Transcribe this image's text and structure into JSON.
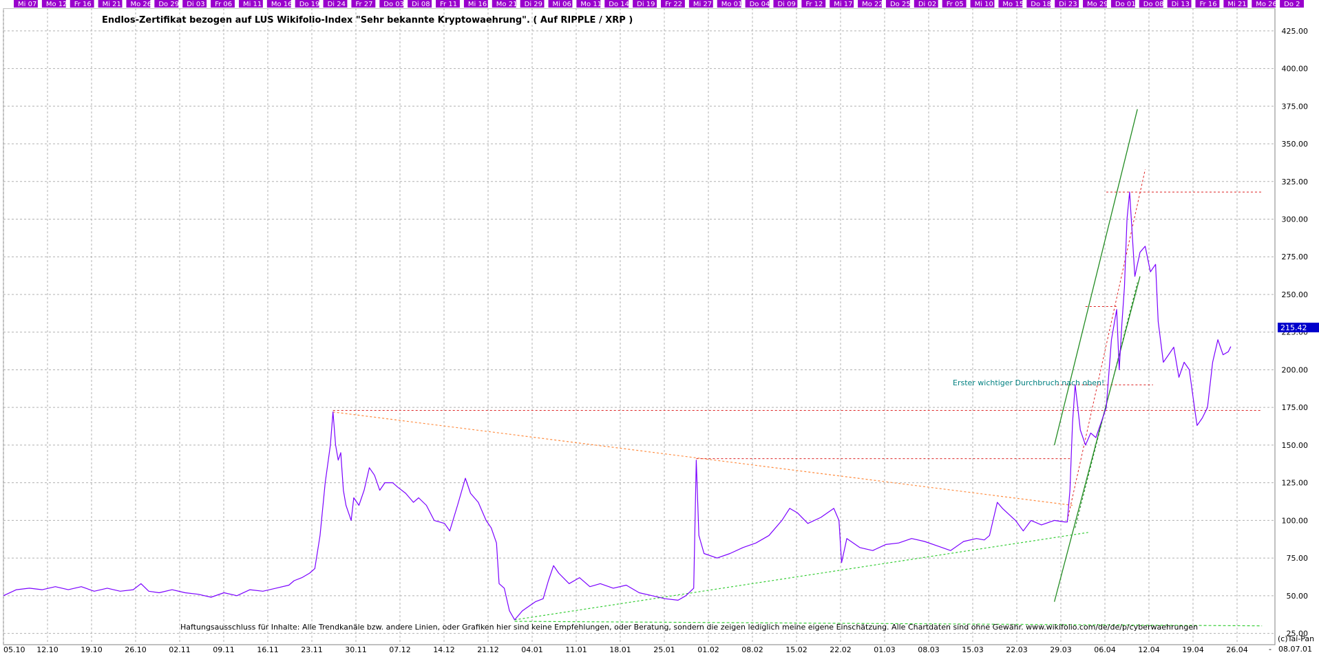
{
  "chart_data": {
    "type": "line",
    "title": "Endlos-Zertifikat bezogen auf LUS Wikifolio-Index \"Sehr bekannte Kryptowaehrung\". ( Auf RIPPLE / XRP )",
    "xlabel": "",
    "ylabel": "",
    "ylim": [
      17.5,
      440
    ],
    "grid": true,
    "y_ticks": [
      "25.00",
      "50.00",
      "75.00",
      "100.00",
      "125.00",
      "150.00",
      "175.00",
      "200.00",
      "225.00",
      "250.00",
      "275.00",
      "300.00",
      "325.00",
      "350.00",
      "375.00",
      "400.00",
      "425.00"
    ],
    "x_ticks": [
      "05.10",
      "12.10",
      "19.10",
      "26.10",
      "02.11",
      "09.11",
      "16.11",
      "23.11",
      "30.11",
      "07.12",
      "14.12",
      "21.12",
      "04.01",
      "11.01",
      "18.01",
      "25.01",
      "01.02",
      "08.02",
      "15.02",
      "22.02",
      "01.03",
      "08.03",
      "15.03",
      "22.03",
      "29.03",
      "06.04",
      "12.04",
      "19.04",
      "26.04"
    ],
    "top_day_labels": [
      "Mi 07",
      "Mo 12",
      "Fr 16",
      "Mi 21",
      "Mo 26",
      "Do 29",
      "Di 03",
      "Fr 06",
      "Mi 11",
      "Mo 16",
      "Do 19",
      "Di 24",
      "Fr 27",
      "Do 03",
      "Di 08",
      "Fr 11",
      "Mi 16",
      "Mo 21",
      "Di 29",
      "Mi 06",
      "Mo 11",
      "Do 14",
      "Di 19",
      "Fr 22",
      "Mi 27",
      "Mo 01",
      "Do 04",
      "Di 09",
      "Fr 12",
      "Mi 17",
      "Mo 22",
      "Do 25",
      "Di 02",
      "Fr 05",
      "Mi 10",
      "Mo 15",
      "Do 18",
      "Di 23",
      "Mo 29",
      "Do 01",
      "Do 08",
      "Di 13",
      "Fr 16",
      "Mi 21",
      "Mo 26",
      "Do 2"
    ],
    "last_value_label": "215.42",
    "annotation": "Erster wichtiger Durchbruch nach oben!",
    "disclaimer": "Haftungsausschluss für Inhalte: Alle Trendkanäle bzw. andere Linien, oder Grafiken hier sind keine Empfehlungen, oder Beratung, sondern die zeigen lediglich meine eigene Einschätzung. Alle Chartdaten sind ohne Gewähr.  www.wikifolio.com/de/de/p/cyberwaehrungen",
    "copyright": "(c)Tai-Pan",
    "date_label": "08.07.01",
    "minus_label": "-",
    "series": [
      {
        "color": "#7a00ff",
        "points": [
          [
            0,
            50
          ],
          [
            5,
            54
          ],
          [
            10,
            55
          ],
          [
            15,
            54
          ],
          [
            20,
            56
          ],
          [
            25,
            54
          ],
          [
            30,
            56
          ],
          [
            35,
            53
          ],
          [
            40,
            55
          ],
          [
            45,
            53
          ],
          [
            50,
            54
          ],
          [
            53,
            58
          ],
          [
            56,
            53
          ],
          [
            60,
            52
          ],
          [
            65,
            54
          ],
          [
            70,
            52
          ],
          [
            75,
            51
          ],
          [
            80,
            49
          ],
          [
            85,
            52
          ],
          [
            90,
            50
          ],
          [
            95,
            54
          ],
          [
            100,
            53
          ],
          [
            105,
            55
          ],
          [
            110,
            57
          ],
          [
            112,
            60
          ],
          [
            115,
            62
          ],
          [
            118,
            65
          ],
          [
            120,
            68
          ],
          [
            122,
            90
          ],
          [
            124,
            125
          ],
          [
            126,
            150
          ],
          [
            127,
            172
          ],
          [
            128,
            150
          ],
          [
            129,
            140
          ],
          [
            130,
            145
          ],
          [
            131,
            120
          ],
          [
            132,
            110
          ],
          [
            134,
            100
          ],
          [
            135,
            115
          ],
          [
            137,
            110
          ],
          [
            139,
            120
          ],
          [
            141,
            135
          ],
          [
            143,
            130
          ],
          [
            145,
            120
          ],
          [
            147,
            125
          ],
          [
            150,
            125
          ],
          [
            152,
            122
          ],
          [
            155,
            118
          ],
          [
            158,
            112
          ],
          [
            160,
            115
          ],
          [
            163,
            110
          ],
          [
            166,
            100
          ],
          [
            170,
            98
          ],
          [
            172,
            93
          ],
          [
            175,
            110
          ],
          [
            178,
            128
          ],
          [
            180,
            118
          ],
          [
            183,
            112
          ],
          [
            186,
            100
          ],
          [
            188,
            95
          ],
          [
            190,
            85
          ],
          [
            191,
            58
          ],
          [
            193,
            55
          ],
          [
            195,
            40
          ],
          [
            197,
            34
          ],
          [
            200,
            40
          ],
          [
            205,
            46
          ],
          [
            208,
            48
          ],
          [
            210,
            60
          ],
          [
            212,
            70
          ],
          [
            214,
            65
          ],
          [
            218,
            58
          ],
          [
            222,
            62
          ],
          [
            226,
            56
          ],
          [
            230,
            58
          ],
          [
            235,
            55
          ],
          [
            240,
            57
          ],
          [
            245,
            52
          ],
          [
            250,
            50
          ],
          [
            255,
            48
          ],
          [
            260,
            47
          ],
          [
            263,
            50
          ],
          [
            266,
            55
          ],
          [
            267,
            140
          ],
          [
            268,
            90
          ],
          [
            270,
            78
          ],
          [
            275,
            75
          ],
          [
            280,
            78
          ],
          [
            285,
            82
          ],
          [
            290,
            85
          ],
          [
            295,
            90
          ],
          [
            300,
            100
          ],
          [
            303,
            108
          ],
          [
            306,
            105
          ],
          [
            310,
            98
          ],
          [
            315,
            102
          ],
          [
            320,
            108
          ],
          [
            322,
            100
          ],
          [
            323,
            72
          ],
          [
            325,
            88
          ],
          [
            330,
            82
          ],
          [
            335,
            80
          ],
          [
            340,
            84
          ],
          [
            345,
            85
          ],
          [
            350,
            88
          ],
          [
            355,
            86
          ],
          [
            360,
            83
          ],
          [
            365,
            80
          ],
          [
            370,
            86
          ],
          [
            375,
            88
          ],
          [
            378,
            87
          ],
          [
            380,
            90
          ],
          [
            383,
            112
          ],
          [
            385,
            108
          ],
          [
            390,
            100
          ],
          [
            393,
            93
          ],
          [
            396,
            100
          ],
          [
            400,
            97
          ],
          [
            405,
            100
          ],
          [
            409,
            99
          ],
          [
            410,
            99
          ],
          [
            411,
            120
          ],
          [
            412,
            165
          ],
          [
            413,
            190
          ],
          [
            415,
            160
          ],
          [
            417,
            150
          ],
          [
            419,
            158
          ],
          [
            421,
            155
          ],
          [
            423,
            165
          ],
          [
            425,
            175
          ],
          [
            427,
            220
          ],
          [
            429,
            240
          ],
          [
            430,
            200
          ],
          [
            431,
            230
          ],
          [
            432,
            255
          ],
          [
            433,
            300
          ],
          [
            434,
            318
          ],
          [
            435,
            290
          ],
          [
            436,
            262
          ],
          [
            438,
            278
          ],
          [
            440,
            282
          ],
          [
            442,
            265
          ],
          [
            444,
            270
          ],
          [
            445,
            232
          ],
          [
            447,
            205
          ],
          [
            449,
            210
          ],
          [
            451,
            215
          ],
          [
            453,
            195
          ],
          [
            455,
            205
          ],
          [
            457,
            200
          ],
          [
            459,
            175
          ],
          [
            460,
            163
          ],
          [
            462,
            168
          ],
          [
            464,
            175
          ],
          [
            466,
            205
          ],
          [
            468,
            220
          ],
          [
            470,
            210
          ],
          [
            472,
            212
          ],
          [
            473,
            215.42
          ]
        ]
      }
    ]
  }
}
